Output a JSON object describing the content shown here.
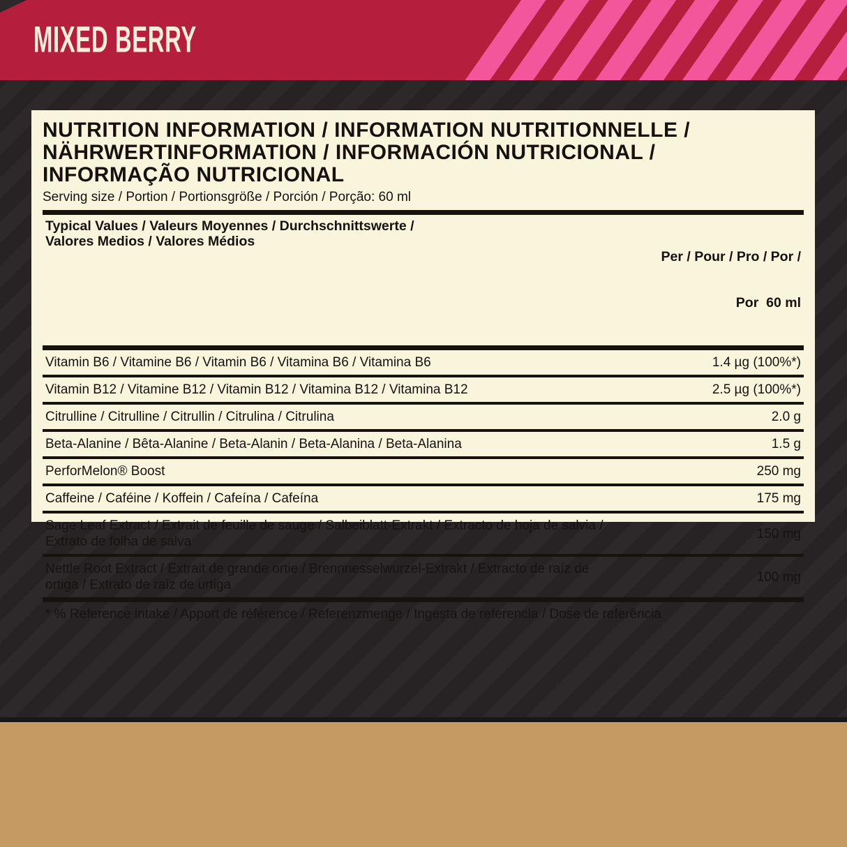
{
  "colors": {
    "banner_red": "#b51e3c",
    "banner_stripe_pink": "#f4569b",
    "banner_text": "#f6eed8",
    "panel_cream": "#f9f4dc",
    "ink": "#151210",
    "bg_dark": "#272324",
    "bg_stripe": "#2d292a",
    "bg_dark_edge": "#1a1718",
    "bottom_band_tan": "#c59a63"
  },
  "banner": {
    "flavor_name": "MIXED BERRY"
  },
  "panel": {
    "title_lines": [
      "NUTRITION INFORMATION / INFORMATION NUTRITIONNELLE /",
      "NÄHRWERTINFORMATION / INFORMACIÓN NUTRICIONAL /",
      "INFORMAÇÃO NUTRICIONAL"
    ],
    "serving_line": "Serving size / Portion / Portionsgröße / Porción / Porção: 60 ml",
    "table": {
      "header_left_lines": [
        "Typical Values / Valeurs Moyennes / Durchschnittswerte /",
        "Valores Medios / Valores Médios"
      ],
      "header_right_lines": [
        "Per / Pour / Pro / Por /",
        "Por  60 ml"
      ],
      "rows": [
        {
          "name": "Vitamin B6 / Vitamine B6 / Vitamin B6 / Vitamina B6 / Vitamina B6",
          "value": "1.4 µg (100%*)"
        },
        {
          "name": "Vitamin B12 / Vitamine B12 / Vitamin B12 / Vitamina B12 / Vitamina B12",
          "value": "2.5 µg (100%*)"
        },
        {
          "name": "Citrulline / Citrulline / Citrullin / Citrulina / Citrulina",
          "value": "2.0 g"
        },
        {
          "name": "Beta-Alanine / Bêta-Alanine / Beta-Alanin / Beta-Alanina / Beta-Alanina",
          "value": "1.5 g"
        },
        {
          "name": "PerforMelon® Boost",
          "value": "250 mg"
        },
        {
          "name": "Caffeine / Caféine / Koffein / Cafeína / Cafeína",
          "value": "175 mg"
        },
        {
          "name": "Sage Leaf Extract / Extrait de feuille de sauge / Salbeiblatt-Extrakt / Extracto de hoja de salvia / Extrato de folha de salva",
          "value": "150 mg"
        },
        {
          "name": "Nettle Root Extract / Extrait de grande ortie / Brennnesselwurzel-Extrakt / Extracto de raíz de ortiga / Extrato de raíz de urtiga",
          "value": "100 mg"
        }
      ]
    },
    "footnote": "* % Reference intake / Apport de référence / Referenzmenge / Ingesta de referencia / Dose de referência"
  }
}
